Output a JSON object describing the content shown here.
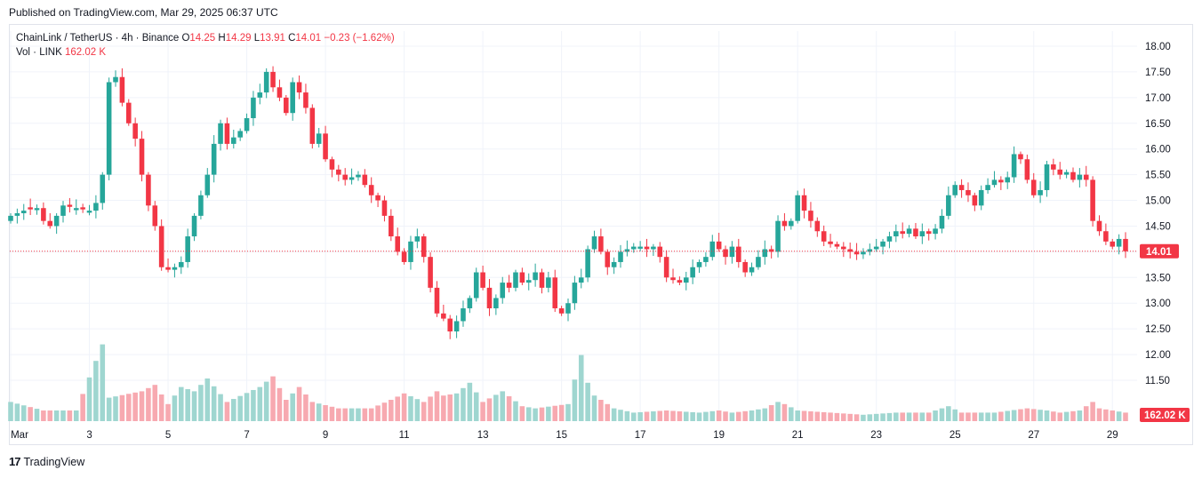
{
  "header": {
    "published": "Published on TradingView.com, Mar 29, 2025 06:37 UTC"
  },
  "legend": {
    "symbol": "ChainLink / TetherUS · 4h · Binance",
    "o_label": "O",
    "o_value": "14.25",
    "h_label": "H",
    "h_value": "14.29",
    "l_label": "L",
    "l_value": "13.91",
    "c_label": "C",
    "c_value": "14.01",
    "change": "−0.23 (−1.62%)",
    "vol_label": "Vol · LINK",
    "vol_value": "162.02 K"
  },
  "footer": {
    "brand": "TradingView",
    "logo_icon": "tradingview-logo-icon"
  },
  "colors": {
    "up": "#26a69a",
    "down": "#f23645",
    "vol_up": "#9fd6d0",
    "vol_down": "#f7a9b0",
    "grid": "#f0f3fa"
  },
  "chart_data": {
    "type": "candlestick",
    "interval": "4h",
    "y_ticks": [
      "18.00",
      "17.50",
      "17.00",
      "16.50",
      "16.00",
      "15.50",
      "15.00",
      "14.50",
      "14.00",
      "13.50",
      "13.00",
      "12.50",
      "12.00",
      "11.50"
    ],
    "ylim": [
      11.5,
      18.0
    ],
    "x_tick_labels": [
      {
        "label": "Mar",
        "day": 1
      },
      {
        "label": "3",
        "day": 3
      },
      {
        "label": "5",
        "day": 5
      },
      {
        "label": "7",
        "day": 7
      },
      {
        "label": "9",
        "day": 9
      },
      {
        "label": "11",
        "day": 11
      },
      {
        "label": "13",
        "day": 13
      },
      {
        "label": "15",
        "day": 15
      },
      {
        "label": "17",
        "day": 17
      },
      {
        "label": "19",
        "day": 19
      },
      {
        "label": "21",
        "day": 21
      },
      {
        "label": "23",
        "day": 23
      },
      {
        "label": "25",
        "day": 25
      },
      {
        "label": "27",
        "day": 27
      },
      {
        "label": "29",
        "day": 29
      }
    ],
    "last_price": "14.01",
    "last_volume": "162.02 K",
    "close_anchors": [
      [
        0,
        14.7
      ],
      [
        2,
        14.8
      ],
      [
        4,
        14.85
      ],
      [
        5,
        14.6
      ],
      [
        6,
        14.5
      ],
      [
        8,
        14.9
      ],
      [
        10,
        14.85
      ],
      [
        12,
        14.8
      ],
      [
        13,
        14.95
      ],
      [
        14,
        15.5
      ],
      [
        15,
        17.3
      ],
      [
        16,
        17.4
      ],
      [
        17,
        16.9
      ],
      [
        18,
        16.5
      ],
      [
        19,
        16.2
      ],
      [
        20,
        15.5
      ],
      [
        21,
        14.9
      ],
      [
        22,
        14.5
      ],
      [
        23,
        13.7
      ],
      [
        24,
        13.65
      ],
      [
        25,
        13.7
      ],
      [
        26,
        13.8
      ],
      [
        27,
        14.3
      ],
      [
        28,
        14.7
      ],
      [
        29,
        15.1
      ],
      [
        30,
        15.5
      ],
      [
        31,
        16.1
      ],
      [
        32,
        16.5
      ],
      [
        33,
        16.1
      ],
      [
        35,
        16.35
      ],
      [
        36,
        16.6
      ],
      [
        37,
        17.0
      ],
      [
        38,
        17.1
      ],
      [
        39,
        17.5
      ],
      [
        40,
        17.2
      ],
      [
        41,
        17.0
      ],
      [
        42,
        16.7
      ],
      [
        43,
        17.3
      ],
      [
        44,
        17.1
      ],
      [
        45,
        16.8
      ],
      [
        46,
        16.1
      ],
      [
        47,
        16.3
      ],
      [
        48,
        15.8
      ],
      [
        49,
        15.6
      ],
      [
        51,
        15.4
      ],
      [
        53,
        15.5
      ],
      [
        54,
        15.3
      ],
      [
        55,
        15.1
      ],
      [
        56,
        15.0
      ],
      [
        57,
        14.7
      ],
      [
        58,
        14.3
      ],
      [
        59,
        14.0
      ],
      [
        60,
        13.8
      ],
      [
        61,
        14.2
      ],
      [
        62,
        14.3
      ],
      [
        63,
        13.9
      ],
      [
        64,
        13.3
      ],
      [
        65,
        12.8
      ],
      [
        66,
        12.7
      ],
      [
        67,
        12.45
      ],
      [
        68,
        12.65
      ],
      [
        69,
        12.9
      ],
      [
        70,
        13.1
      ],
      [
        71,
        13.6
      ],
      [
        72,
        13.3
      ],
      [
        73,
        12.9
      ],
      [
        74,
        13.1
      ],
      [
        75,
        13.4
      ],
      [
        76,
        13.3
      ],
      [
        77,
        13.6
      ],
      [
        78,
        13.4
      ],
      [
        79,
        13.45
      ],
      [
        80,
        13.6
      ],
      [
        81,
        13.3
      ],
      [
        82,
        13.5
      ],
      [
        83,
        12.9
      ],
      [
        84,
        12.8
      ],
      [
        85,
        13.0
      ],
      [
        86,
        13.4
      ],
      [
        87,
        13.5
      ],
      [
        88,
        14.05
      ],
      [
        89,
        14.3
      ],
      [
        90,
        14.0
      ],
      [
        91,
        13.7
      ],
      [
        92,
        13.8
      ],
      [
        93,
        14.0
      ],
      [
        95,
        14.1
      ],
      [
        96,
        14.1
      ],
      [
        97,
        14.05
      ],
      [
        98,
        14.1
      ],
      [
        99,
        13.9
      ],
      [
        100,
        13.5
      ],
      [
        101,
        13.45
      ],
      [
        102,
        13.4
      ],
      [
        103,
        13.5
      ],
      [
        104,
        13.7
      ],
      [
        105,
        13.8
      ],
      [
        106,
        13.9
      ],
      [
        107,
        14.2
      ],
      [
        108,
        14.05
      ],
      [
        109,
        13.9
      ],
      [
        110,
        14.1
      ],
      [
        111,
        13.8
      ],
      [
        112,
        13.6
      ],
      [
        113,
        13.7
      ],
      [
        114,
        13.9
      ],
      [
        115,
        14.05
      ],
      [
        116,
        14.0
      ],
      [
        117,
        14.6
      ],
      [
        118,
        14.5
      ],
      [
        119,
        14.6
      ],
      [
        120,
        15.1
      ],
      [
        121,
        14.8
      ],
      [
        122,
        14.6
      ],
      [
        123,
        14.4
      ],
      [
        124,
        14.2
      ],
      [
        125,
        14.15
      ],
      [
        126,
        14.1
      ],
      [
        127,
        14.05
      ],
      [
        128,
        14.0
      ],
      [
        129,
        13.95
      ],
      [
        130,
        14.0
      ],
      [
        131,
        14.05
      ],
      [
        132,
        14.1
      ],
      [
        133,
        14.2
      ],
      [
        134,
        14.3
      ],
      [
        135,
        14.4
      ],
      [
        136,
        14.35
      ],
      [
        137,
        14.45
      ],
      [
        138,
        14.3
      ],
      [
        139,
        14.4
      ],
      [
        140,
        14.35
      ],
      [
        141,
        14.45
      ],
      [
        142,
        14.7
      ],
      [
        143,
        15.1
      ],
      [
        144,
        15.3
      ],
      [
        145,
        15.2
      ],
      [
        146,
        15.1
      ],
      [
        147,
        14.9
      ],
      [
        148,
        15.2
      ],
      [
        149,
        15.3
      ],
      [
        150,
        15.4
      ],
      [
        151,
        15.35
      ],
      [
        152,
        15.45
      ],
      [
        153,
        15.9
      ],
      [
        154,
        15.8
      ],
      [
        155,
        15.4
      ],
      [
        156,
        15.1
      ],
      [
        157,
        15.2
      ],
      [
        158,
        15.7
      ],
      [
        159,
        15.6
      ],
      [
        160,
        15.5
      ],
      [
        161,
        15.55
      ],
      [
        162,
        15.4
      ],
      [
        163,
        15.5
      ],
      [
        164,
        15.4
      ],
      [
        165,
        14.6
      ],
      [
        166,
        14.4
      ],
      [
        167,
        14.2
      ],
      [
        168,
        14.1
      ],
      [
        169,
        14.25
      ],
      [
        170,
        14.01
      ]
    ],
    "volume_anchors": [
      [
        0,
        0.9
      ],
      [
        5,
        0.5
      ],
      [
        10,
        0.5
      ],
      [
        14,
        3.6
      ],
      [
        15,
        1.1
      ],
      [
        20,
        1.4
      ],
      [
        22,
        1.7
      ],
      [
        24,
        0.8
      ],
      [
        26,
        1.6
      ],
      [
        28,
        1.4
      ],
      [
        30,
        2.0
      ],
      [
        33,
        0.9
      ],
      [
        38,
        1.6
      ],
      [
        40,
        2.1
      ],
      [
        42,
        1.0
      ],
      [
        44,
        1.6
      ],
      [
        46,
        0.9
      ],
      [
        50,
        0.6
      ],
      [
        55,
        0.6
      ],
      [
        58,
        1.0
      ],
      [
        60,
        1.3
      ],
      [
        63,
        0.9
      ],
      [
        65,
        1.4
      ],
      [
        66,
        1.2
      ],
      [
        68,
        1.3
      ],
      [
        70,
        1.8
      ],
      [
        72,
        0.9
      ],
      [
        75,
        1.4
      ],
      [
        78,
        0.7
      ],
      [
        80,
        0.6
      ],
      [
        85,
        0.8
      ],
      [
        87,
        3.1
      ],
      [
        88,
        1.8
      ],
      [
        89,
        1.2
      ],
      [
        92,
        0.6
      ],
      [
        95,
        0.4
      ],
      [
        100,
        0.5
      ],
      [
        105,
        0.4
      ],
      [
        108,
        0.5
      ],
      [
        110,
        0.4
      ],
      [
        113,
        0.5
      ],
      [
        115,
        0.6
      ],
      [
        117,
        0.9
      ],
      [
        118,
        0.8
      ],
      [
        120,
        0.5
      ],
      [
        125,
        0.4
      ],
      [
        130,
        0.3
      ],
      [
        135,
        0.4
      ],
      [
        140,
        0.4
      ],
      [
        142,
        0.6
      ],
      [
        143,
        0.7
      ],
      [
        145,
        0.4
      ],
      [
        150,
        0.4
      ],
      [
        155,
        0.6
      ],
      [
        158,
        0.5
      ],
      [
        160,
        0.4
      ],
      [
        163,
        0.5
      ],
      [
        165,
        0.9
      ],
      [
        166,
        0.6
      ],
      [
        168,
        0.5
      ],
      [
        170,
        0.4
      ]
    ],
    "n_candles": 171
  }
}
